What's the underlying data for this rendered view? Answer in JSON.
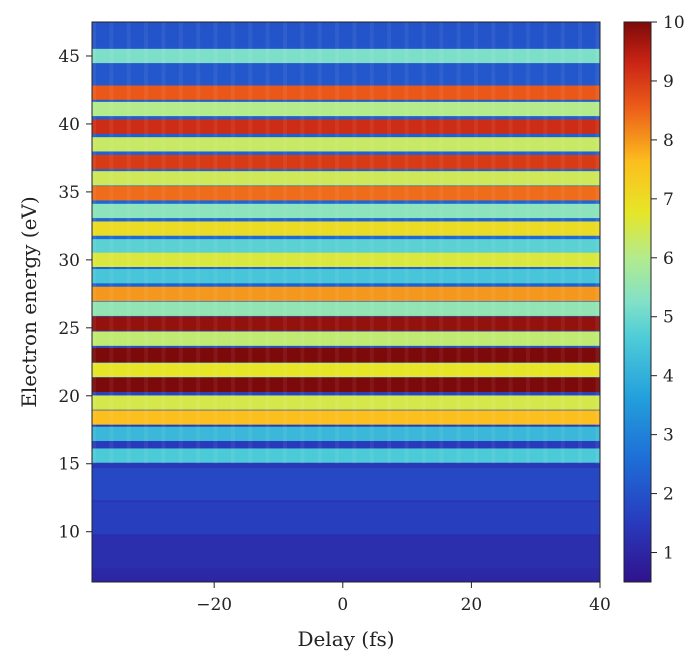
{
  "chart_data": {
    "type": "heatmap",
    "title": "",
    "xlabel": "Delay (fs)",
    "ylabel": "Electron energy (eV)",
    "xlim": [
      -39,
      40
    ],
    "ylim": [
      6.3,
      47.5
    ],
    "x_ticks": [
      -20,
      0,
      20,
      40
    ],
    "x_tick_labels": [
      "−20",
      "0",
      "20",
      "40"
    ],
    "y_ticks": [
      10,
      15,
      20,
      25,
      30,
      35,
      40,
      45
    ],
    "y_tick_labels": [
      "10",
      "15",
      "20",
      "25",
      "30",
      "35",
      "40",
      "45"
    ],
    "colorbar": {
      "range": [
        0.5,
        10
      ],
      "ticks": [
        1,
        2,
        3,
        4,
        5,
        6,
        7,
        8,
        9,
        10
      ],
      "tick_labels": [
        "1",
        "2",
        "3",
        "4",
        "5",
        "6",
        "7",
        "8",
        "9",
        "10"
      ],
      "colormap": "jet"
    },
    "energy_bands": [
      {
        "energy_eV": 45.0,
        "intensity": 5.2
      },
      {
        "energy_eV": 42.3,
        "intensity": 8.6
      },
      {
        "energy_eV": 41.1,
        "intensity": 6.0
      },
      {
        "energy_eV": 39.8,
        "intensity": 9.2
      },
      {
        "energy_eV": 38.5,
        "intensity": 6.3
      },
      {
        "energy_eV": 37.2,
        "intensity": 9.0
      },
      {
        "energy_eV": 36.0,
        "intensity": 6.4
      },
      {
        "energy_eV": 34.9,
        "intensity": 8.4
      },
      {
        "energy_eV": 33.6,
        "intensity": 5.4
      },
      {
        "energy_eV": 32.3,
        "intensity": 7.0
      },
      {
        "energy_eV": 31.0,
        "intensity": 4.8
      },
      {
        "energy_eV": 30.0,
        "intensity": 6.6
      },
      {
        "energy_eV": 28.8,
        "intensity": 4.5
      },
      {
        "energy_eV": 27.5,
        "intensity": 8.0
      },
      {
        "energy_eV": 26.4,
        "intensity": 5.5
      },
      {
        "energy_eV": 25.3,
        "intensity": 9.8
      },
      {
        "energy_eV": 24.2,
        "intensity": 6.2
      },
      {
        "energy_eV": 23.0,
        "intensity": 10.0
      },
      {
        "energy_eV": 21.9,
        "intensity": 6.8
      },
      {
        "energy_eV": 20.8,
        "intensity": 10.0
      },
      {
        "energy_eV": 19.5,
        "intensity": 6.5
      },
      {
        "energy_eV": 18.4,
        "intensity": 7.6
      },
      {
        "energy_eV": 17.2,
        "intensity": 4.2
      },
      {
        "energy_eV": 15.6,
        "intensity": 4.6
      },
      {
        "energy_eV": 13.5,
        "intensity": 1.8
      },
      {
        "energy_eV": 11.0,
        "intensity": 1.6
      },
      {
        "energy_eV": 8.5,
        "intensity": 1.2
      }
    ],
    "background_intensity": 1.6,
    "grid": false
  }
}
